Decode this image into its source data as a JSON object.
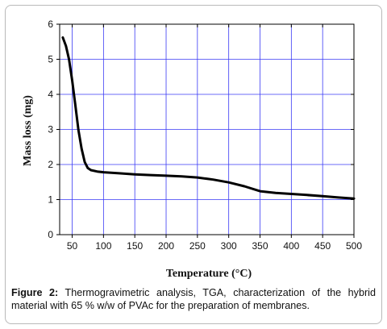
{
  "chart_data": {
    "type": "line",
    "xlabel": "Temperature (°C)",
    "ylabel": "Mass loss (mg)",
    "xlim": [
      30,
      500
    ],
    "ylim": [
      0,
      6
    ],
    "x_ticks": [
      "50",
      "100",
      "150",
      "200",
      "250",
      "300",
      "350",
      "400",
      "450",
      "500"
    ],
    "y_ticks": [
      "0",
      "1",
      "2",
      "3",
      "4",
      "5",
      "6"
    ],
    "grid": true,
    "grid_color": "#3a3af5",
    "line_color": "#000000",
    "series": [
      {
        "x": [
          35,
          40,
          45,
          50,
          55,
          60,
          65,
          70,
          75,
          80,
          90,
          100,
          125,
          150,
          175,
          200,
          225,
          250,
          275,
          300,
          325,
          350,
          375,
          400,
          425,
          450,
          475,
          500
        ],
        "y": [
          5.62,
          5.38,
          5.0,
          4.4,
          3.7,
          2.98,
          2.45,
          2.07,
          1.9,
          1.84,
          1.8,
          1.78,
          1.75,
          1.72,
          1.7,
          1.68,
          1.66,
          1.63,
          1.57,
          1.49,
          1.38,
          1.24,
          1.19,
          1.16,
          1.13,
          1.1,
          1.06,
          1.03
        ]
      }
    ]
  },
  "caption": {
    "label": "Figure 2:",
    "text": "Thermogravimetric analysis, TGA, characterization of the hybrid material with 65 % w/w of PVAc for the preparation of membranes."
  }
}
